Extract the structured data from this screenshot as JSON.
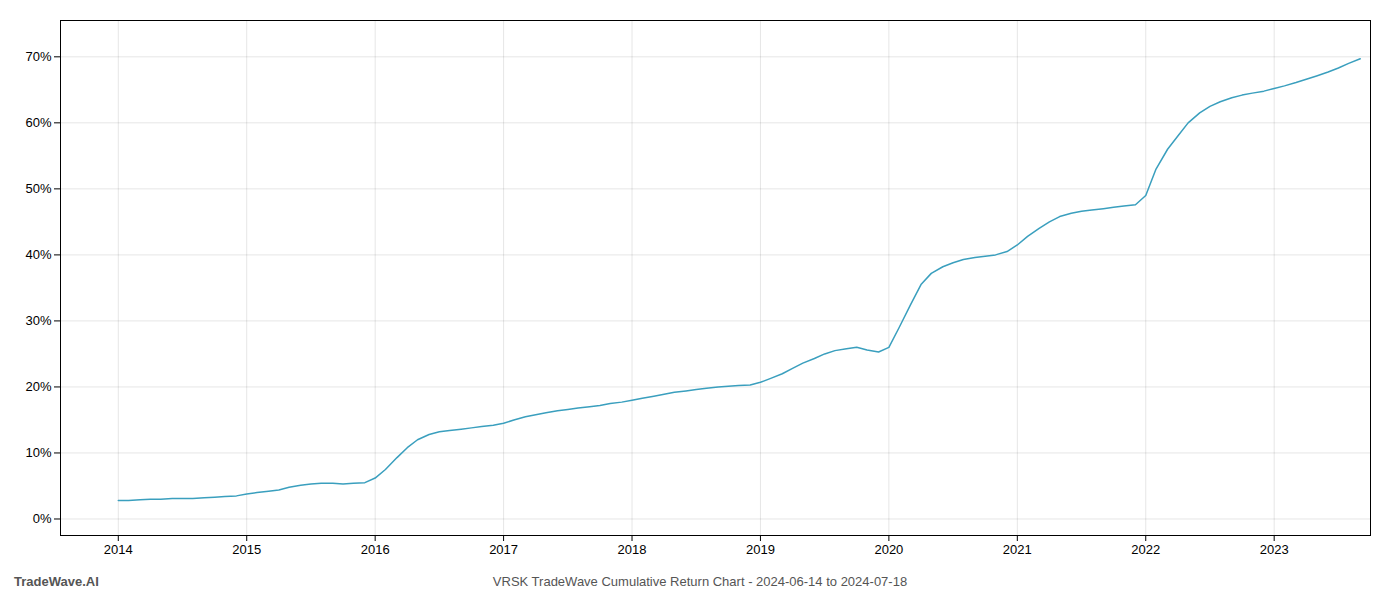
{
  "chart_data": {
    "type": "line",
    "title": "VRSK TradeWave Cumulative Return Chart - 2024-06-14 to 2024-07-18",
    "annotations": [
      "TradeWave.AI"
    ],
    "color": "#3a9fbe",
    "grid": true,
    "xlim": [
      2013.55,
      2023.75
    ],
    "xticks": [
      2014,
      2015,
      2016,
      2017,
      2018,
      2019,
      2020,
      2021,
      2022,
      2023
    ],
    "ylim": [
      -0.025,
      0.755
    ],
    "yticks": [
      {
        "value": 0.0,
        "label": "0%"
      },
      {
        "value": 0.1,
        "label": "10%"
      },
      {
        "value": 0.2,
        "label": "20%"
      },
      {
        "value": 0.3,
        "label": "30%"
      },
      {
        "value": 0.4,
        "label": "40%"
      },
      {
        "value": 0.5,
        "label": "50%"
      },
      {
        "value": 0.6,
        "label": "60%"
      },
      {
        "value": 0.7,
        "label": "70%"
      }
    ],
    "x": [
      2014.0,
      2014.08,
      2014.17,
      2014.25,
      2014.33,
      2014.42,
      2014.5,
      2014.58,
      2014.67,
      2014.75,
      2014.83,
      2014.92,
      2015.0,
      2015.08,
      2015.17,
      2015.25,
      2015.33,
      2015.42,
      2015.5,
      2015.58,
      2015.67,
      2015.75,
      2015.83,
      2015.92,
      2016.0,
      2016.08,
      2016.17,
      2016.25,
      2016.33,
      2016.42,
      2016.5,
      2016.58,
      2016.67,
      2016.75,
      2016.83,
      2016.92,
      2017.0,
      2017.08,
      2017.17,
      2017.25,
      2017.33,
      2017.42,
      2017.5,
      2017.58,
      2017.67,
      2017.75,
      2017.83,
      2017.92,
      2018.0,
      2018.08,
      2018.17,
      2018.25,
      2018.33,
      2018.42,
      2018.5,
      2018.58,
      2018.67,
      2018.75,
      2018.83,
      2018.92,
      2019.0,
      2019.08,
      2019.17,
      2019.25,
      2019.33,
      2019.42,
      2019.5,
      2019.58,
      2019.67,
      2019.75,
      2019.83,
      2019.92,
      2020.0,
      2020.08,
      2020.17,
      2020.25,
      2020.33,
      2020.42,
      2020.5,
      2020.58,
      2020.67,
      2020.75,
      2020.83,
      2020.92,
      2021.0,
      2021.08,
      2021.17,
      2021.25,
      2021.33,
      2021.42,
      2021.5,
      2021.58,
      2021.67,
      2021.75,
      2021.83,
      2021.92,
      2022.0,
      2022.08,
      2022.17,
      2022.25,
      2022.33,
      2022.42,
      2022.5,
      2022.58,
      2022.67,
      2022.75,
      2022.83,
      2022.92,
      2023.0,
      2023.08,
      2023.17,
      2023.25,
      2023.33,
      2023.42,
      2023.5,
      2023.58,
      2023.67
    ],
    "values": [
      0.028,
      0.028,
      0.029,
      0.03,
      0.03,
      0.031,
      0.031,
      0.031,
      0.032,
      0.033,
      0.034,
      0.035,
      0.038,
      0.04,
      0.042,
      0.044,
      0.048,
      0.051,
      0.053,
      0.054,
      0.054,
      0.053,
      0.054,
      0.055,
      0.062,
      0.075,
      0.093,
      0.108,
      0.12,
      0.128,
      0.132,
      0.134,
      0.136,
      0.138,
      0.14,
      0.142,
      0.145,
      0.15,
      0.155,
      0.158,
      0.161,
      0.164,
      0.166,
      0.168,
      0.17,
      0.172,
      0.175,
      0.177,
      0.18,
      0.183,
      0.186,
      0.189,
      0.192,
      0.194,
      0.196,
      0.198,
      0.2,
      0.201,
      0.202,
      0.203,
      0.207,
      0.213,
      0.22,
      0.228,
      0.236,
      0.243,
      0.25,
      0.255,
      0.258,
      0.26,
      0.256,
      0.253,
      0.26,
      0.29,
      0.325,
      0.355,
      0.372,
      0.382,
      0.388,
      0.393,
      0.396,
      0.398,
      0.4,
      0.405,
      0.415,
      0.428,
      0.44,
      0.45,
      0.458,
      0.463,
      0.466,
      0.468,
      0.47,
      0.472,
      0.474,
      0.476,
      0.49,
      0.53,
      0.56,
      0.58,
      0.6,
      0.615,
      0.625,
      0.632,
      0.638,
      0.642,
      0.645,
      0.648,
      0.652,
      0.656,
      0.661,
      0.666,
      0.671,
      0.677,
      0.683,
      0.69,
      0.697
    ]
  }
}
